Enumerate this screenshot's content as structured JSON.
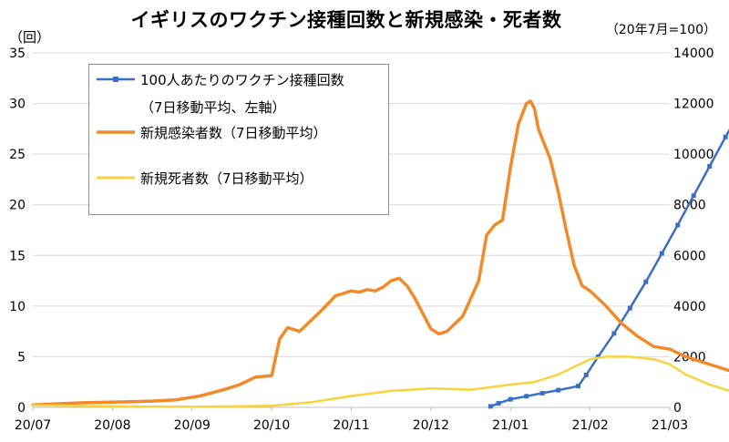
{
  "title": "イギリスのワクチン接種回数と新規感染・死者数",
  "unit_left": "（回）",
  "unit_right": "（20年7月=100）",
  "legend": {
    "items": [
      {
        "line1": "100人あたりのワクチン接種回数",
        "line2": "（7日移動平均、左軸）",
        "color": "#3a6fc4",
        "marker": "square"
      },
      {
        "line1": "新規感染者数（7日移動平均）",
        "color": "#f08a2a"
      },
      {
        "line1": "新規死者数（7日移動平均）",
        "color": "#f7d43e"
      }
    ]
  },
  "chart_data": {
    "type": "line",
    "title": "イギリスのワクチン接種回数と新規感染・死者数",
    "x_tick_labels": [
      "20/07",
      "20/08",
      "20/09",
      "20/10",
      "20/11",
      "20/12",
      "21/01",
      "21/02",
      "21/03"
    ],
    "y_left": {
      "label": "（回）",
      "ylim": [
        0,
        35
      ],
      "ticks": [
        0,
        5,
        10,
        15,
        20,
        25,
        30,
        35
      ]
    },
    "y_right": {
      "label": "（20年7月=100）",
      "ylim": [
        0,
        14000
      ],
      "ticks": [
        0,
        2000,
        4000,
        6000,
        8000,
        10000,
        12000,
        14000
      ]
    },
    "grid": "horizontal",
    "legend_position": "top-left",
    "series": [
      {
        "name": "100人あたりのワクチン接種回数（7日移動平均、左軸）",
        "axis": "left",
        "color": "#3a6fc4",
        "x": [
          5.75,
          5.85,
          6.0,
          6.2,
          6.4,
          6.6,
          6.85,
          6.95,
          7.1,
          7.3,
          7.5,
          7.7,
          7.9,
          8.1,
          8.3,
          8.5,
          8.7,
          8.95
        ],
        "y": [
          0.1,
          0.4,
          0.8,
          1.1,
          1.4,
          1.7,
          2.1,
          3.2,
          5.0,
          7.3,
          9.8,
          12.4,
          15.2,
          18.0,
          20.9,
          23.8,
          26.7,
          30.1
        ]
      },
      {
        "name": "新規感染者数（7日移動平均）",
        "axis": "right",
        "color": "#f08a2a",
        "x": [
          0,
          0.3,
          0.6,
          0.9,
          1.2,
          1.5,
          1.8,
          2.1,
          2.4,
          2.6,
          2.8,
          3.0,
          3.1,
          3.2,
          3.35,
          3.5,
          3.65,
          3.8,
          3.9,
          4.0,
          4.1,
          4.2,
          4.3,
          4.4,
          4.5,
          4.6,
          4.7,
          4.8,
          4.9,
          5.0,
          5.1,
          5.2,
          5.3,
          5.4,
          5.5,
          5.6,
          5.7,
          5.8,
          5.9,
          6.0,
          6.1,
          6.2,
          6.25,
          6.3,
          6.35,
          6.5,
          6.6,
          6.7,
          6.8,
          6.9,
          7.0,
          7.2,
          7.4,
          7.6,
          7.8,
          8.0,
          8.2,
          8.4,
          8.6,
          8.8,
          8.95
        ],
        "y": [
          100,
          140,
          180,
          200,
          220,
          250,
          300,
          450,
          700,
          900,
          1200,
          1250,
          2700,
          3150,
          3000,
          3450,
          3900,
          4400,
          4500,
          4600,
          4550,
          4650,
          4600,
          4750,
          5000,
          5100,
          4800,
          4300,
          3700,
          3100,
          2900,
          3000,
          3300,
          3600,
          4300,
          5000,
          6800,
          7200,
          7400,
          9500,
          11200,
          12000,
          12100,
          11800,
          11000,
          9800,
          8500,
          7000,
          5600,
          4800,
          4600,
          4000,
          3300,
          2800,
          2400,
          2300,
          2000,
          1800,
          1600,
          1400,
          1500
        ]
      },
      {
        "name": "新規死者数（7日移動平均）",
        "axis": "right",
        "color": "#f7d43e",
        "x": [
          0,
          0.5,
          1.0,
          1.5,
          2.0,
          2.5,
          3.0,
          3.5,
          4.0,
          4.5,
          5.0,
          5.5,
          6.0,
          6.3,
          6.6,
          7.0,
          7.2,
          7.5,
          7.8,
          8.0,
          8.2,
          8.5,
          8.8,
          8.95
        ],
        "y": [
          80,
          60,
          40,
          30,
          30,
          40,
          60,
          200,
          450,
          650,
          750,
          700,
          900,
          1000,
          1300,
          1900,
          2000,
          2000,
          1900,
          1700,
          1300,
          900,
          600,
          450
        ]
      }
    ]
  }
}
